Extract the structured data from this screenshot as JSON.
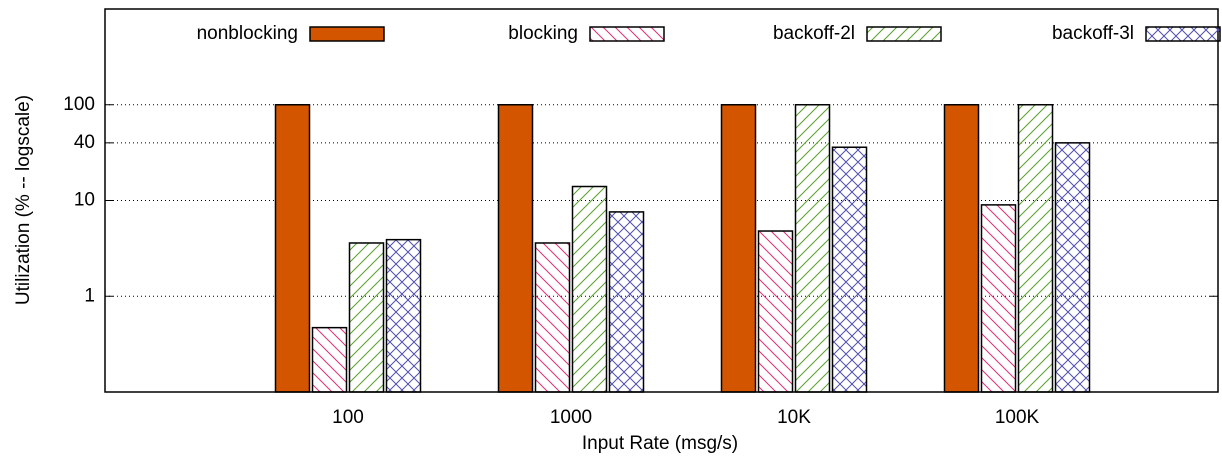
{
  "chart_data": {
    "type": "bar",
    "x_label": "Input Rate (msg/s)",
    "y_label": "Utilization (% -- logscale)",
    "categories": [
      "100",
      "1000",
      "10K",
      "100K"
    ],
    "series": [
      {
        "name": "nonblocking",
        "color": "#d45500",
        "values": [
          100,
          100,
          100,
          100
        ]
      },
      {
        "name": "blocking",
        "color": "#e0317a",
        "values": [
          0.47,
          3.6,
          4.8,
          9
        ]
      },
      {
        "name": "backoff-2l",
        "color": "#5aa02c",
        "values": [
          3.6,
          14,
          100,
          100
        ]
      },
      {
        "name": "backoff-3l",
        "color": "#5050b0",
        "values": [
          3.9,
          7.6,
          36,
          40
        ]
      }
    ],
    "log_scale": true,
    "ylim": [
      0.1,
      1000
    ],
    "yticks": [
      1,
      10,
      40,
      100
    ],
    "grid": true,
    "legend": "top"
  }
}
